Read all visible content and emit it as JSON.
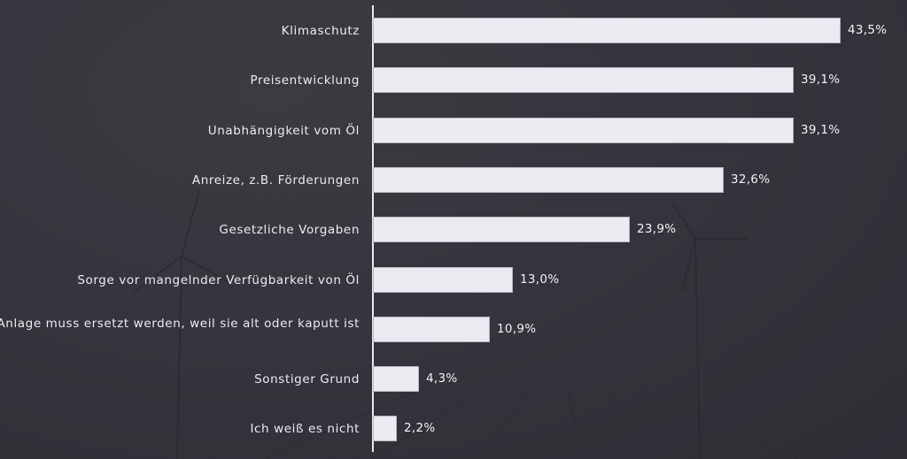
{
  "chart_data": {
    "type": "bar",
    "orientation": "horizontal",
    "title": "",
    "xlabel": "",
    "ylabel": "",
    "categories": [
      "Klimaschutz",
      "Preisentwicklung",
      "Unabhängigkeit vom Öl",
      "Anreize, z.B. Förderungen",
      "Gesetzliche Vorgaben",
      "Sorge vor mangelnder Verfügbarkeit von Öl",
      "Anlage muss ersetzt werden, weil sie alt oder kaputt ist",
      "Sonstiger Grund",
      "Ich weiß es nicht"
    ],
    "values": [
      43.5,
      39.1,
      39.1,
      32.6,
      23.9,
      13.0,
      10.9,
      4.3,
      2.2
    ],
    "value_labels": [
      "43,5%",
      "39,1%",
      "39,1%",
      "32,6%",
      "23,9%",
      "13,0%",
      "10,9%",
      "4,3%",
      "2,2%"
    ],
    "unit": "%",
    "grid": false,
    "legend": "none",
    "colors": {
      "bar": "#ecebf2",
      "background": "#36353d",
      "text": "#ecebf1"
    }
  }
}
